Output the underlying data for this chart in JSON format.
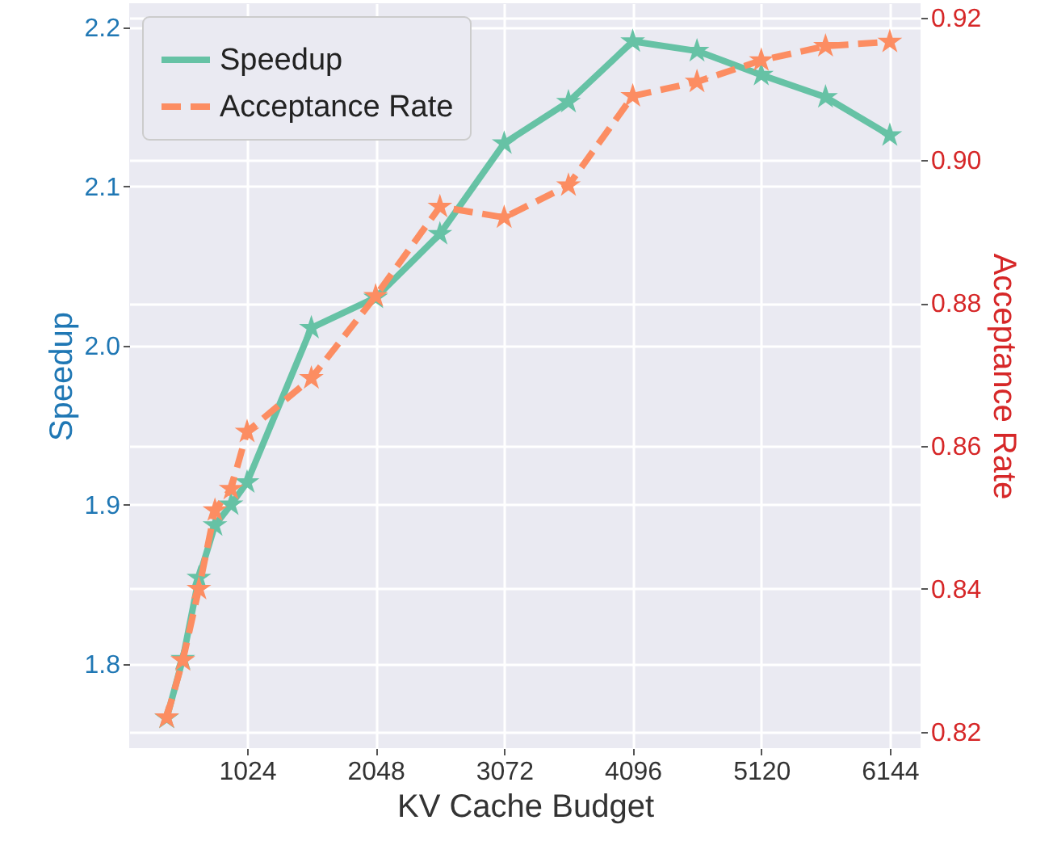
{
  "chart_data": {
    "type": "line",
    "xlabel": "KV Cache Budget",
    "ylabel": "Speedup",
    "y2label": "Acceptance Rate",
    "x": [
      384,
      512,
      640,
      768,
      896,
      1024,
      1536,
      2048,
      2560,
      3072,
      3584,
      4096,
      4608,
      5120,
      5632,
      6144
    ],
    "xlim": [
      85,
      6389
    ],
    "xticks": [
      1024,
      2048,
      3072,
      4096,
      5120,
      6144
    ],
    "ylim": [
      1.747,
      2.215
    ],
    "yticks": [
      1.8,
      1.9,
      {
        "value": 2,
        "label": "2.0"
      },
      2.1,
      2.2
    ],
    "y2lim": [
      0.8177,
      0.922
    ],
    "y2ticks": [
      0.82,
      0.84,
      0.86,
      0.88,
      {
        "value": 0.9,
        "label": "0.90"
      },
      0.92
    ],
    "series": [
      {
        "name": "Speedup",
        "color": "#66c2a5",
        "line_style": "solid",
        "values": [
          1.766,
          1.803,
          1.854,
          1.887,
          1.9,
          1.914,
          2.011,
          2.03,
          2.07,
          2.127,
          2.153,
          2.191,
          2.185,
          2.17,
          2.156,
          2.132
        ]
      },
      {
        "name": "Acceptance Rate",
        "color": "#fc8d62",
        "axis": "y2",
        "line_style": "dashed",
        "values": [
          0.822,
          0.83,
          0.84,
          0.851,
          0.854,
          0.862,
          0.8695,
          0.881,
          0.8935,
          0.892,
          0.8965,
          0.909,
          0.911,
          0.914,
          0.916,
          0.9166
        ]
      }
    ],
    "marker": "star",
    "grid": true,
    "legend": "top left"
  }
}
